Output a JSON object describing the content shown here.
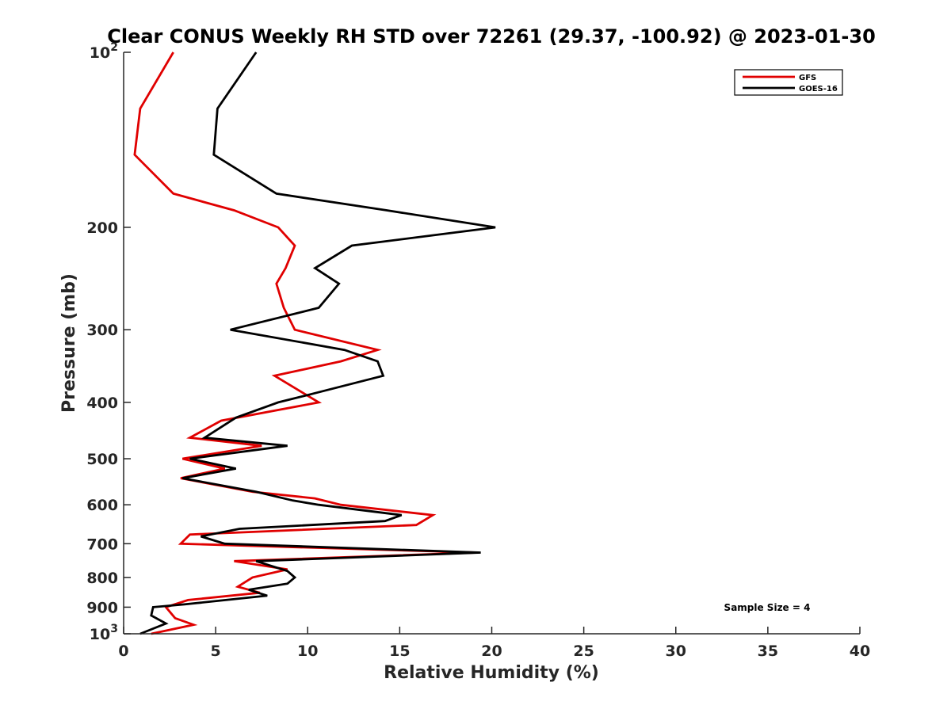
{
  "chart_data": {
    "type": "line",
    "title": "Clear CONUS Weekly RH STD over 72261 (29.37, -100.92) @ 2023-01-30",
    "xlabel": "Relative Humidity (%)",
    "ylabel": "Pressure (mb)",
    "xlim": [
      0,
      40
    ],
    "ylim": [
      1000,
      100
    ],
    "yscale": "log",
    "y_reversed": true,
    "x_ticks": [
      0,
      5,
      10,
      15,
      20,
      25,
      30,
      35,
      40
    ],
    "x_tick_labels": [
      "0",
      "5",
      "10",
      "15",
      "20",
      "25",
      "30",
      "35",
      "40"
    ],
    "y_ticks": [
      100,
      200,
      300,
      400,
      500,
      600,
      700,
      800,
      900,
      1000
    ],
    "y_tick_labels": [
      {
        "base": "10",
        "sup": "2"
      },
      {
        "base": "200",
        "sup": ""
      },
      {
        "base": "300",
        "sup": ""
      },
      {
        "base": "400",
        "sup": ""
      },
      {
        "base": "500",
        "sup": ""
      },
      {
        "base": "600",
        "sup": ""
      },
      {
        "base": "700",
        "sup": ""
      },
      {
        "base": "800",
        "sup": ""
      },
      {
        "base": "900",
        "sup": ""
      },
      {
        "base": "10",
        "sup": "3"
      }
    ],
    "grid": false,
    "legend_position": "top-right",
    "annotation": "Sample Size = 4",
    "series": [
      {
        "name": "GFS",
        "color": "#e00000",
        "points": [
          [
            2.7,
            100
          ],
          [
            0.9,
            125
          ],
          [
            0.6,
            150
          ],
          [
            2.7,
            175
          ],
          [
            6.0,
            187
          ],
          [
            8.4,
            200
          ],
          [
            9.3,
            215
          ],
          [
            8.8,
            235
          ],
          [
            8.3,
            250
          ],
          [
            8.7,
            275
          ],
          [
            9.3,
            300
          ],
          [
            13.8,
            325
          ],
          [
            11.8,
            340
          ],
          [
            8.2,
            360
          ],
          [
            10.6,
            400
          ],
          [
            5.3,
            430
          ],
          [
            3.6,
            460
          ],
          [
            7.5,
            475
          ],
          [
            3.2,
            500
          ],
          [
            5.5,
            520
          ],
          [
            3.1,
            540
          ],
          [
            7.0,
            570
          ],
          [
            10.4,
            585
          ],
          [
            11.8,
            600
          ],
          [
            16.8,
            625
          ],
          [
            15.9,
            650
          ],
          [
            3.6,
            675
          ],
          [
            3.1,
            700
          ],
          [
            19.2,
            725
          ],
          [
            6.0,
            750
          ],
          [
            8.9,
            775
          ],
          [
            7.0,
            800
          ],
          [
            6.2,
            830
          ],
          [
            7.4,
            850
          ],
          [
            3.5,
            875
          ],
          [
            2.3,
            900
          ],
          [
            2.8,
            940
          ],
          [
            3.8,
            965
          ],
          [
            1.5,
            1000
          ]
        ]
      },
      {
        "name": "GOES-16",
        "color": "#000000",
        "points": [
          [
            7.2,
            100
          ],
          [
            5.1,
            125
          ],
          [
            4.9,
            150
          ],
          [
            8.3,
            175
          ],
          [
            14.3,
            187
          ],
          [
            20.2,
            200
          ],
          [
            12.4,
            215
          ],
          [
            10.4,
            235
          ],
          [
            11.7,
            250
          ],
          [
            10.6,
            275
          ],
          [
            5.8,
            300
          ],
          [
            12.0,
            325
          ],
          [
            13.8,
            340
          ],
          [
            14.1,
            360
          ],
          [
            9.8,
            390
          ],
          [
            8.4,
            400
          ],
          [
            6.1,
            425
          ],
          [
            4.4,
            460
          ],
          [
            8.9,
            475
          ],
          [
            3.6,
            500
          ],
          [
            6.1,
            520
          ],
          [
            3.2,
            540
          ],
          [
            7.2,
            570
          ],
          [
            9.2,
            590
          ],
          [
            10.6,
            600
          ],
          [
            15.1,
            625
          ],
          [
            14.2,
            640
          ],
          [
            6.3,
            660
          ],
          [
            4.2,
            680
          ],
          [
            5.5,
            700
          ],
          [
            19.4,
            725
          ],
          [
            7.2,
            750
          ],
          [
            8.9,
            780
          ],
          [
            9.3,
            800
          ],
          [
            8.9,
            820
          ],
          [
            6.8,
            840
          ],
          [
            7.8,
            860
          ],
          [
            3.3,
            890
          ],
          [
            1.6,
            900
          ],
          [
            1.5,
            930
          ],
          [
            2.3,
            960
          ],
          [
            0.9,
            1000
          ]
        ]
      }
    ]
  }
}
